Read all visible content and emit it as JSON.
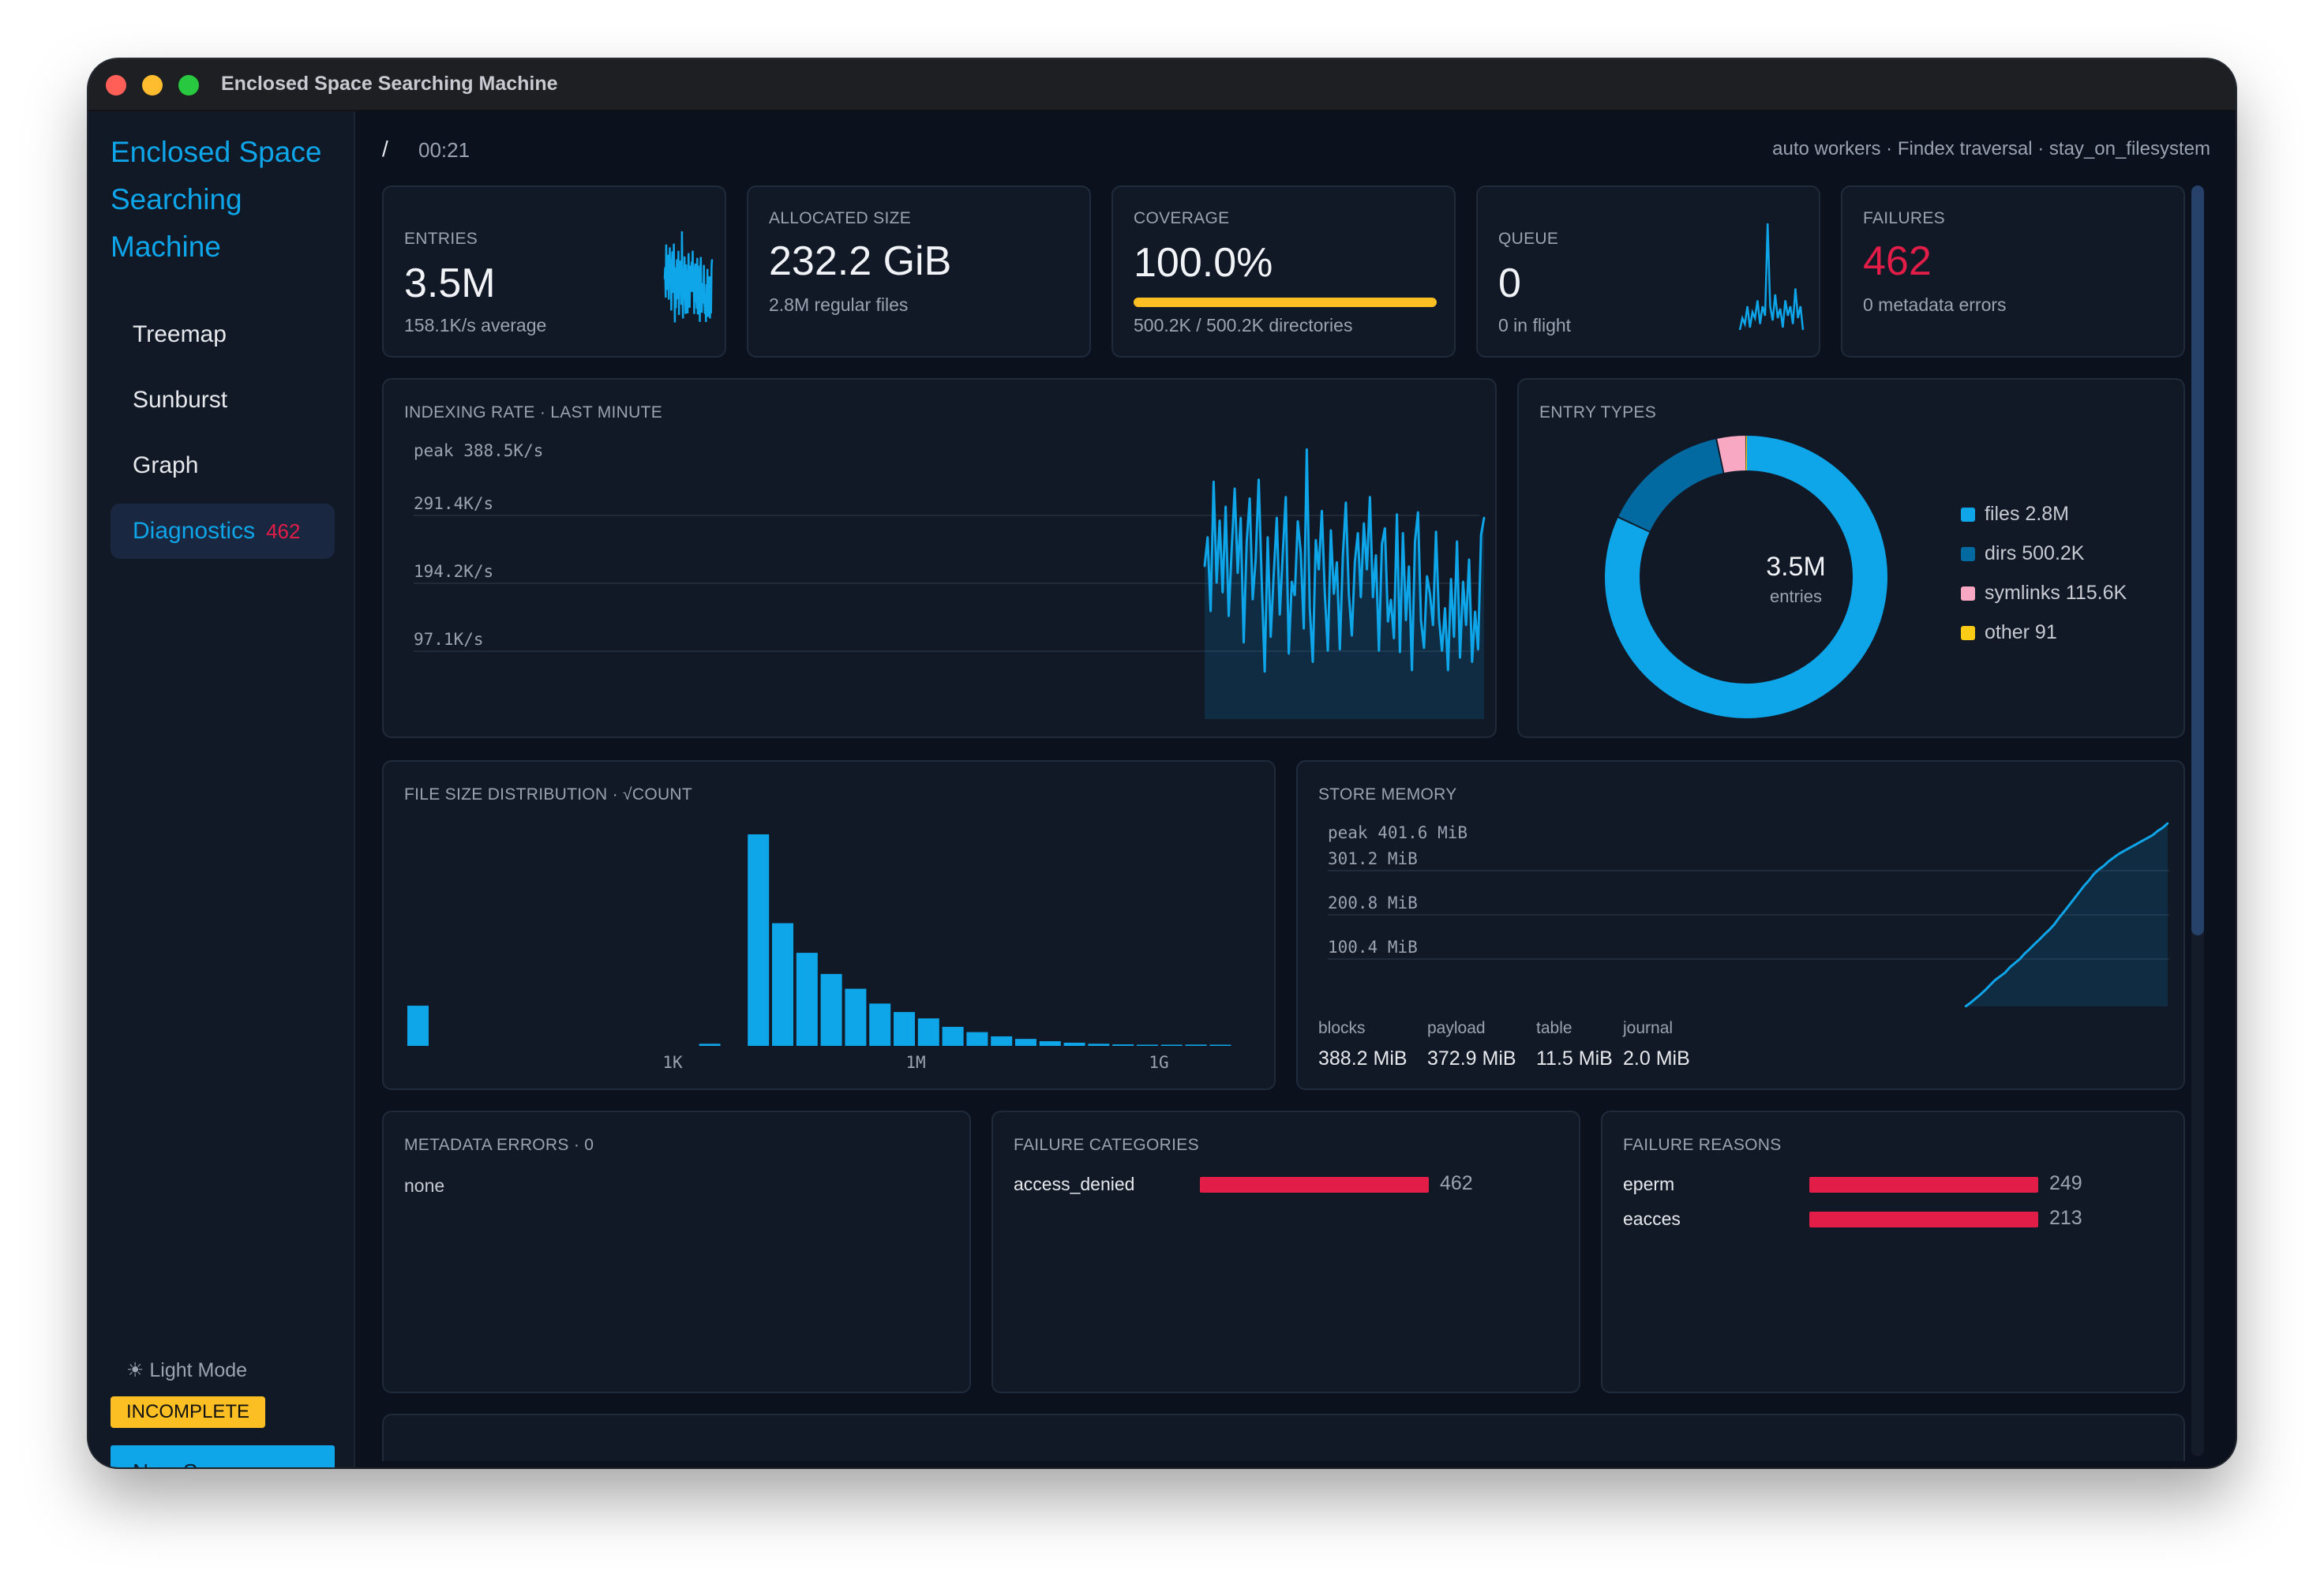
{
  "window": {
    "title": "Enclosed Space Searching Machine"
  },
  "sidebar": {
    "brand_lines": [
      "Enclosed Space",
      "Searching",
      "Machine"
    ],
    "items": [
      {
        "label": "Treemap"
      },
      {
        "label": "Sunburst"
      },
      {
        "label": "Graph"
      },
      {
        "label": "Diagnostics",
        "badge": "462",
        "active": true
      }
    ],
    "light_mode": "☀ Light Mode",
    "status_badge": "INCOMPLETE",
    "new_scan": "New Scan"
  },
  "topbar": {
    "path": "/",
    "elapsed": "00:21",
    "mode": "auto workers · Findex traversal · stay_on_filesystem"
  },
  "stats": {
    "entries": {
      "label": "ENTRIES",
      "value": "3.5M",
      "sub": "158.1K/s average"
    },
    "allocated": {
      "label": "ALLOCATED SIZE",
      "value": "232.2 GiB",
      "sub": "2.8M regular files"
    },
    "coverage": {
      "label": "COVERAGE",
      "value": "100.0%",
      "sub": "500.2K / 500.2K directories",
      "progress": 1.0
    },
    "queue": {
      "label": "QUEUE",
      "value": "0",
      "sub": "0 in flight"
    },
    "failures": {
      "label": "FAILURES",
      "value": "462",
      "sub": "0 metadata errors"
    }
  },
  "indexing_rate": {
    "title": "INDEXING RATE · LAST MINUTE",
    "peak": "peak 388.5K/s",
    "ticks": [
      "291.4K/s",
      "194.2K/s",
      "97.1K/s"
    ]
  },
  "entry_types": {
    "title": "ENTRY TYPES",
    "center_value": "3.5M",
    "center_label": "entries",
    "legend": [
      "files 2.8M",
      "dirs 500.2K",
      "symlinks 115.6K",
      "other 91"
    ]
  },
  "file_size": {
    "title": "FILE SIZE DISTRIBUTION · √COUNT",
    "ticks": [
      "1K",
      "1M",
      "1G"
    ]
  },
  "store_memory": {
    "title": "STORE MEMORY",
    "peak": "peak 401.6 MiB",
    "ticks": [
      "301.2 MiB",
      "200.8 MiB",
      "100.4 MiB"
    ],
    "stats": [
      {
        "label": "blocks",
        "value": "388.2 MiB"
      },
      {
        "label": "payload",
        "value": "372.9 MiB"
      },
      {
        "label": "table",
        "value": "11.5 MiB"
      },
      {
        "label": "journal",
        "value": "2.0 MiB"
      }
    ]
  },
  "metadata_errors": {
    "title": "METADATA ERRORS · 0",
    "body": "none"
  },
  "failure_categories": {
    "title": "FAILURE CATEGORIES",
    "rows": [
      {
        "label": "access_denied",
        "value": "462",
        "fraction": 1.0
      }
    ]
  },
  "failure_reasons": {
    "title": "FAILURE REASONS",
    "rows": [
      {
        "label": "eperm",
        "value": "249",
        "fraction": 1.0
      },
      {
        "label": "eacces",
        "value": "213",
        "fraction": 1.0
      }
    ]
  },
  "colors": {
    "accent": "#0ea5e9",
    "danger": "#e11d48",
    "warning": "#fbbf24",
    "dirs": "#0369a1",
    "symlinks": "#f9a8c4",
    "other": "#facc15"
  },
  "chart_data": [
    {
      "type": "area",
      "title": "INDEXING RATE · LAST MINUTE",
      "ylim": [
        0,
        388.5
      ],
      "yunit": "K/s",
      "series": [
        {
          "values": [
            220,
            262,
            155,
            342,
            196,
            286,
            182,
            306,
            148,
            245,
            332,
            210,
            290,
            110,
            255,
            318,
            172,
            230,
            345,
            200,
            68,
            262,
            118,
            208,
            290,
            150,
            238,
            320,
            94,
            198,
            178,
            285,
            240,
            130,
            388.5,
            160,
            82,
            258,
            215,
            300,
            180,
            98,
            272,
            180,
            226,
            100,
            235,
            312,
            180,
            120,
            226,
            268,
            175,
            282,
            215,
            320,
            175,
            236,
            98,
            252,
            275,
            140,
            172,
            116,
            295,
            96,
            268,
            142,
            220,
            70,
            256,
            298,
            142,
            102,
            206,
            180,
            135,
            270,
            145,
            98,
            160,
            70,
            202,
            118,
            256,
            88,
            198,
            135,
            230,
            82,
            155,
            100,
            265,
            290
          ]
        }
      ]
    },
    {
      "type": "pie",
      "title": "ENTRY TYPES",
      "categories": [
        "files",
        "dirs",
        "symlinks",
        "other"
      ],
      "values": [
        2800000,
        500200,
        115600,
        91
      ]
    },
    {
      "type": "bar",
      "title": "FILE SIZE DISTRIBUTION · √COUNT",
      "xticks": [
        "1K",
        "1M",
        "1G"
      ],
      "values": [
        0.19,
        0,
        0,
        0,
        0,
        0,
        0,
        0,
        0,
        0,
        0,
        0,
        0.01,
        0,
        1.0,
        0.58,
        0.44,
        0.34,
        0.27,
        0.2,
        0.16,
        0.13,
        0.09,
        0.065,
        0.045,
        0.033,
        0.022,
        0.015,
        0.01,
        0.007,
        0.005,
        0.004,
        0.006,
        0.003,
        0,
        0,
        0.002,
        0.002,
        0.002
      ]
    },
    {
      "type": "area",
      "title": "STORE MEMORY",
      "ylim": [
        0,
        401.6
      ],
      "yunit": "MiB",
      "series": [
        {
          "values": [
            0,
            8,
            17,
            26,
            36,
            47,
            58,
            66,
            74,
            86,
            95,
            104,
            116,
            126,
            137,
            147,
            158,
            168,
            180,
            195,
            208,
            222,
            236,
            250,
            264,
            276,
            290,
            300,
            308,
            318,
            326,
            334,
            340,
            346,
            352,
            358,
            364,
            370,
            376,
            385,
            392,
            401.6
          ]
        }
      ]
    }
  ]
}
